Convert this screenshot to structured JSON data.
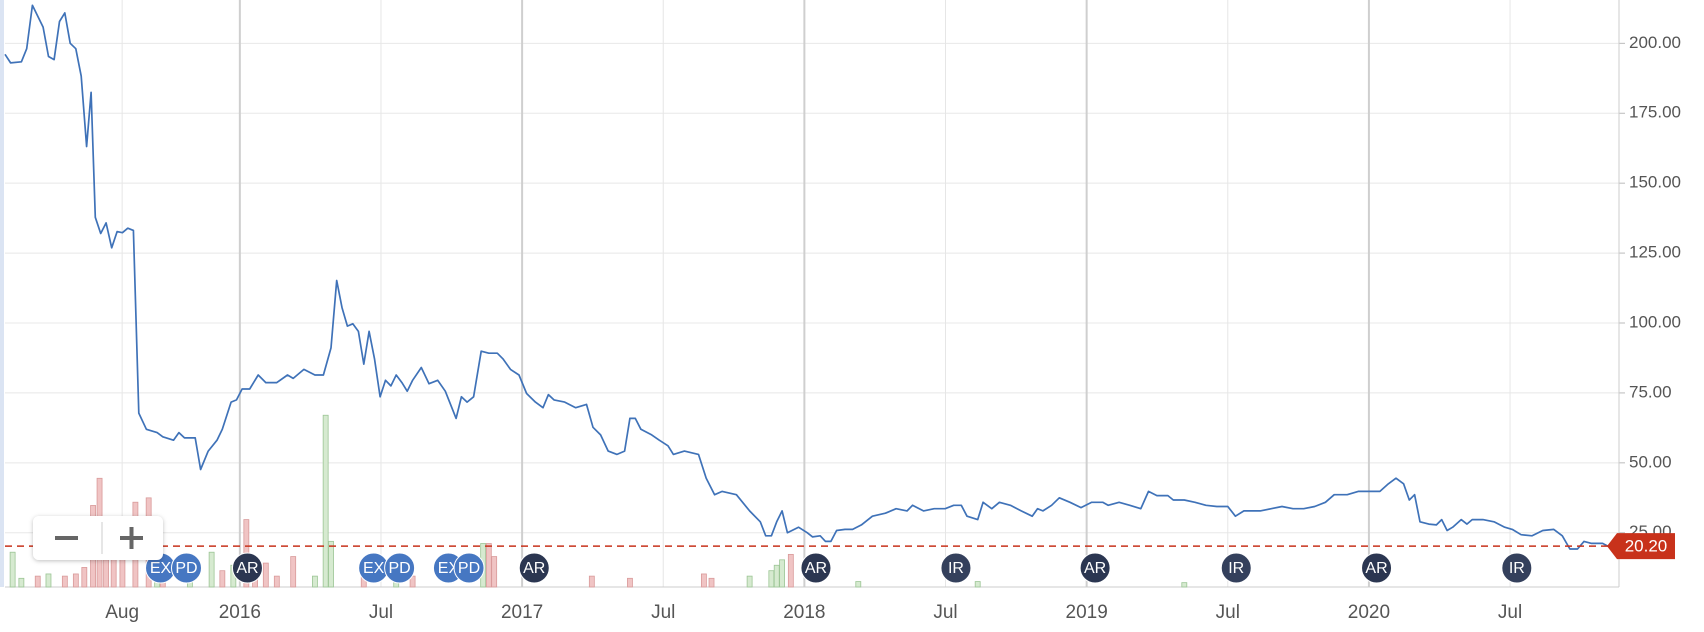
{
  "chart_data": {
    "type": "line",
    "x": [
      2015.168,
      2015.188,
      2015.226,
      2015.245,
      2015.265,
      2015.303,
      2015.322,
      2015.342,
      2015.361,
      2015.38,
      2015.399,
      2015.419,
      2015.438,
      2015.457,
      2015.473,
      2015.488,
      2015.507,
      2015.526,
      2015.546,
      2015.565,
      2015.584,
      2015.603,
      2015.623,
      2015.642,
      2015.669,
      2015.707,
      2015.727,
      2015.765,
      2015.784,
      2015.804,
      2015.842,
      2015.861,
      2015.888,
      2015.919,
      2015.938,
      2015.969,
      2015.988,
      2016.008,
      2016.035,
      2016.065,
      2016.092,
      2016.131,
      2016.169,
      2016.189,
      2016.227,
      2016.266,
      2016.296,
      2016.323,
      2016.343,
      2016.362,
      2016.381,
      2016.4,
      2016.42,
      2016.439,
      2016.458,
      2016.477,
      2016.497,
      2016.516,
      2016.535,
      2016.554,
      2016.574,
      2016.593,
      2016.612,
      2016.643,
      2016.67,
      2016.701,
      2016.728,
      2016.766,
      2016.785,
      2016.805,
      2016.828,
      2016.855,
      2016.882,
      2016.912,
      2016.932,
      2016.959,
      2016.989,
      2017.016,
      2017.047,
      2017.074,
      2017.093,
      2017.113,
      2017.151,
      2017.19,
      2017.228,
      2017.251,
      2017.278,
      2017.305,
      2017.336,
      2017.363,
      2017.382,
      2017.401,
      2017.421,
      2017.459,
      2017.486,
      2017.517,
      2017.536,
      2017.575,
      2017.625,
      2017.652,
      2017.682,
      2017.709,
      2017.759,
      2017.806,
      2017.844,
      2017.863,
      2017.883,
      2017.902,
      2017.921,
      2017.94,
      2017.979,
      2018.01,
      2018.029,
      2018.056,
      2018.075,
      2018.094,
      2018.114,
      2018.144,
      2018.171,
      2018.202,
      2018.241,
      2018.287,
      2018.325,
      2018.364,
      2018.383,
      2018.422,
      2018.46,
      2018.499,
      2018.529,
      2018.556,
      2018.576,
      2018.614,
      2018.633,
      2018.664,
      2018.691,
      2018.73,
      2018.768,
      2018.807,
      2018.826,
      2018.845,
      2018.876,
      2018.903,
      2018.941,
      2018.98,
      2019.018,
      2019.057,
      2019.076,
      2019.115,
      2019.153,
      2019.192,
      2019.219,
      2019.249,
      2019.288,
      2019.307,
      2019.346,
      2019.384,
      2019.423,
      2019.461,
      2019.5,
      2019.527,
      2019.557,
      2019.615,
      2019.654,
      2019.692,
      2019.731,
      2019.769,
      2019.808,
      2019.846,
      2019.877,
      2019.923,
      2019.962,
      2020.0,
      2020.039,
      2020.069,
      2020.096,
      2020.123,
      2020.143,
      2020.162,
      2020.181,
      2020.212,
      2020.239,
      2020.258,
      2020.277,
      2020.297,
      2020.327,
      2020.347,
      2020.366,
      2020.404,
      2020.443,
      2020.481,
      2020.508,
      2020.539,
      2020.578,
      2020.616,
      2020.655,
      2020.685,
      2020.712,
      2020.739,
      2020.762,
      2020.789,
      2020.828,
      2020.847
    ],
    "values": [
      196.1,
      193.0,
      193.4,
      198.1,
      213.6,
      205.8,
      195.3,
      194.2,
      207.8,
      210.9,
      200.0,
      198.1,
      188.3,
      163.1,
      182.5,
      137.8,
      132.0,
      135.8,
      126.9,
      132.7,
      132.3,
      133.9,
      133.1,
      67.8,
      62.0,
      60.8,
      59.3,
      58.1,
      60.8,
      58.9,
      58.9,
      47.6,
      54.2,
      58.1,
      62.0,
      71.7,
      72.5,
      76.4,
      76.4,
      81.4,
      78.7,
      78.7,
      81.4,
      80.2,
      83.4,
      81.4,
      81.4,
      91.1,
      115.2,
      105.5,
      98.9,
      99.7,
      97.0,
      85.3,
      97.0,
      87.2,
      73.6,
      79.5,
      77.5,
      81.4,
      78.7,
      75.6,
      79.5,
      84.1,
      78.3,
      79.5,
      75.6,
      65.9,
      73.6,
      71.7,
      73.6,
      89.9,
      89.2,
      89.2,
      87.2,
      83.4,
      81.4,
      74.8,
      71.7,
      69.7,
      74.4,
      72.5,
      71.7,
      69.7,
      70.9,
      62.7,
      60.0,
      54.2,
      53.0,
      54.2,
      65.9,
      65.9,
      62.0,
      60.0,
      58.1,
      56.1,
      53.0,
      54.2,
      53.0,
      44.5,
      38.6,
      39.8,
      38.6,
      32.8,
      28.9,
      23.9,
      23.9,
      28.9,
      32.8,
      25.0,
      27.0,
      25.0,
      23.5,
      23.9,
      21.9,
      21.9,
      25.8,
      26.2,
      26.2,
      27.8,
      30.9,
      32.0,
      33.6,
      32.8,
      34.8,
      32.8,
      33.6,
      33.6,
      34.8,
      34.8,
      30.9,
      29.7,
      35.9,
      33.6,
      35.9,
      34.8,
      32.8,
      30.9,
      33.6,
      32.8,
      34.8,
      37.5,
      35.9,
      34.0,
      35.9,
      35.9,
      34.8,
      35.9,
      34.8,
      33.6,
      39.8,
      38.3,
      38.3,
      36.7,
      36.7,
      35.9,
      34.8,
      34.4,
      34.4,
      30.9,
      32.8,
      32.8,
      33.6,
      34.4,
      33.6,
      33.6,
      34.4,
      35.9,
      38.6,
      38.6,
      39.8,
      39.8,
      39.8,
      42.5,
      44.5,
      42.5,
      36.7,
      38.6,
      28.9,
      28.1,
      27.8,
      29.7,
      25.8,
      27.0,
      29.7,
      28.1,
      29.7,
      29.7,
      28.9,
      27.0,
      26.2,
      24.3,
      23.9,
      25.8,
      26.2,
      23.9,
      19.2,
      19.2,
      21.9,
      21.2,
      21.2,
      20.2
    ],
    "color": "#3f72b8",
    "xlim": [
      2015.168,
      2020.886
    ],
    "ylim": [
      5.6,
      215.5
    ],
    "xticks": [
      {
        "value": 2015.583,
        "label": "Aug"
      },
      2016,
      {
        "value": 2016.5,
        "label": "Jul"
      },
      2017,
      {
        "value": 2017.5,
        "label": "Jul"
      },
      2018,
      {
        "value": 2018.5,
        "label": "Jul"
      },
      2019,
      {
        "value": 2019.5,
        "label": "Jul"
      },
      2020,
      {
        "value": 2020.5,
        "label": "Jul"
      }
    ],
    "yticks": [
      {
        "value": 25,
        "label": "25.00"
      },
      {
        "value": 50,
        "label": "50.00"
      },
      {
        "value": 75,
        "label": "75.00"
      },
      {
        "value": 100,
        "label": "100.00"
      },
      {
        "value": 125,
        "label": "125.00"
      },
      {
        "value": 150,
        "label": "150.00"
      },
      {
        "value": 175,
        "label": "175.00"
      },
      {
        "value": 200,
        "label": "200.00"
      }
    ],
    "grid": true,
    "price_line": {
      "value": 20.2,
      "label": "20.20",
      "color": "#c8321b"
    },
    "volume": {
      "vlim": [
        0,
        540
      ],
      "up_color": "#d6ead0",
      "down_color": "#f0c4c4",
      "x": [
        2015.195,
        2015.226,
        2015.284,
        2015.322,
        2015.38,
        2015.419,
        2015.449,
        2015.48,
        2015.503,
        2015.526,
        2015.553,
        2015.584,
        2015.63,
        2015.677,
        2015.707,
        2015.727,
        2015.823,
        2015.9,
        2015.938,
        2015.977,
        2016.023,
        2016.054,
        2016.092,
        2016.131,
        2016.189,
        2016.266,
        2016.304,
        2016.323,
        2016.439,
        2016.554,
        2016.612,
        2016.862,
        2016.882,
        2016.901,
        2017.247,
        2017.382,
        2017.644,
        2017.671,
        2017.806,
        2017.883,
        2017.902,
        2017.921,
        2017.952,
        2018.191,
        2018.614,
        2019.346
      ],
      "values": [
        32,
        8,
        10,
        12,
        10,
        12,
        18,
        75,
        100,
        25,
        30,
        50,
        78,
        82,
        20,
        15,
        22,
        32,
        15,
        20,
        62,
        25,
        22,
        10,
        28,
        10,
        158,
        42,
        22,
        15,
        10,
        40,
        40,
        28,
        10,
        8,
        12,
        8,
        10,
        15,
        20,
        25,
        30,
        5,
        5,
        4
      ],
      "up": [
        true,
        true,
        false,
        true,
        false,
        false,
        false,
        false,
        false,
        false,
        false,
        false,
        false,
        false,
        true,
        false,
        true,
        true,
        false,
        true,
        false,
        false,
        false,
        false,
        false,
        true,
        true,
        true,
        false,
        true,
        false,
        true,
        false,
        false,
        false,
        false,
        false,
        false,
        true,
        true,
        true,
        true,
        false,
        true,
        true,
        true
      ]
    },
    "events": [
      {
        "label": "EX",
        "x": 2015.719,
        "color": "#4677c2"
      },
      {
        "label": "PD",
        "x": 2015.811,
        "color": "#4677c2"
      },
      {
        "label": "AR",
        "x": 2016.027,
        "color": "#2b3651"
      },
      {
        "label": "EX",
        "x": 2016.474,
        "color": "#4677c2"
      },
      {
        "label": "PD",
        "x": 2016.566,
        "color": "#4677c2"
      },
      {
        "label": "EX",
        "x": 2016.739,
        "color": "#4677c2"
      },
      {
        "label": "PD",
        "x": 2016.812,
        "color": "#4677c2"
      },
      {
        "label": "AR",
        "x": 2017.043,
        "color": "#2b3651"
      },
      {
        "label": "AR",
        "x": 2018.041,
        "color": "#2b3651"
      },
      {
        "label": "IR",
        "x": 2018.537,
        "color": "#34405c"
      },
      {
        "label": "AR",
        "x": 2019.03,
        "color": "#2b3651"
      },
      {
        "label": "IR",
        "x": 2019.53,
        "color": "#34405c"
      },
      {
        "label": "AR",
        "x": 2020.027,
        "color": "#2b3651"
      },
      {
        "label": "IR",
        "x": 2020.524,
        "color": "#34405c"
      }
    ]
  }
}
